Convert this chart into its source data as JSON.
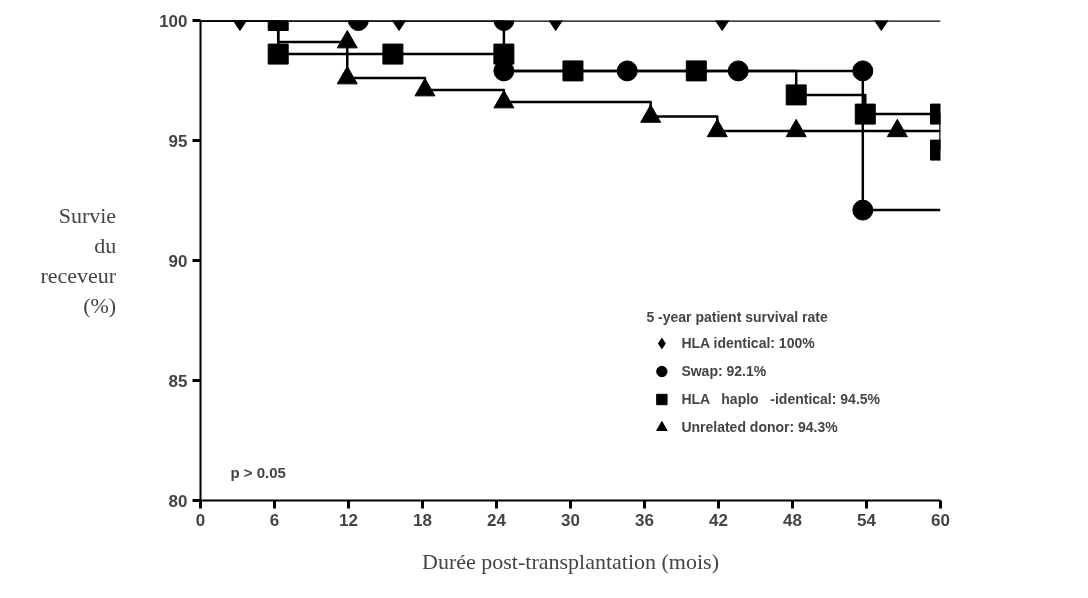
{
  "chart_data": {
    "type": "step",
    "xlabel": "Durée post-transplantation (mois)",
    "ylabel": "Survie du receveur (%)",
    "legend_title": "5 -year patient survival rate",
    "annotations": [
      "p > 0.05"
    ],
    "xlim": [
      0,
      60
    ],
    "xticks": [
      0,
      6,
      12,
      18,
      24,
      30,
      36,
      42,
      48,
      54,
      60
    ],
    "ylim": [
      80,
      100
    ],
    "yticks": [
      80,
      85,
      90,
      95,
      100
    ],
    "grid": false,
    "legend": "bottom right",
    "series": [
      {
        "color": "#000000",
        "x": [
          0,
          60
        ],
        "values": [
          100,
          100
        ]
      },
      {
        "color": "#000000",
        "x": [
          0,
          24.6,
          53.7,
          60
        ],
        "values": [
          100,
          97.9,
          92.1,
          92.1
        ]
      },
      {
        "color": "#000000",
        "x": [
          0,
          6.3,
          24.6,
          48.3,
          53.9,
          60
        ],
        "values": [
          100,
          98.6,
          97.9,
          96.9,
          96.1,
          94.6
        ]
      },
      {
        "color": "#000000",
        "x": [
          0,
          6.3,
          11.9,
          18.2,
          24.6,
          36.5,
          41.9,
          60
        ],
        "values": [
          100,
          99.1,
          97.6,
          97.1,
          96.6,
          96.0,
          95.4,
          95.4
        ]
      },
      {
        "type": "scatter",
        "name": "HLA identical: 100%",
        "marker": "diamond",
        "color": "#000000",
        "x": [
          3.2,
          16.1,
          28.8,
          42.3,
          55.2
        ],
        "values": [
          100,
          100,
          100,
          100,
          100
        ]
      },
      {
        "type": "scatter",
        "name": "Swap: 92.1%",
        "marker": "circle",
        "color": "#000000",
        "x": [
          12.8,
          24.6,
          24.6,
          34.6,
          43.6,
          53.7,
          53.7
        ],
        "values": [
          100,
          100,
          97.9,
          97.9,
          97.9,
          97.9,
          92.1
        ]
      },
      {
        "type": "scatter",
        "name": "HLA   haplo   -identical: 94.5%",
        "marker": "square",
        "color": "#000000",
        "x": [
          6.3,
          6.3,
          15.6,
          24.6,
          30.2,
          40.2,
          48.3,
          53.9,
          60,
          60
        ],
        "values": [
          100,
          98.6,
          98.6,
          98.6,
          97.9,
          97.9,
          96.9,
          96.1,
          96.1,
          94.6
        ]
      },
      {
        "type": "scatter",
        "name": "Unrelated donor: 94.3%",
        "marker": "triangle",
        "color": "#000000",
        "x": [
          11.9,
          11.9,
          18.2,
          24.6,
          36.5,
          41.9,
          48.3,
          56.5
        ],
        "values": [
          99.1,
          97.6,
          97.1,
          96.6,
          96.0,
          95.4,
          95.4,
          95.4
        ]
      }
    ]
  }
}
